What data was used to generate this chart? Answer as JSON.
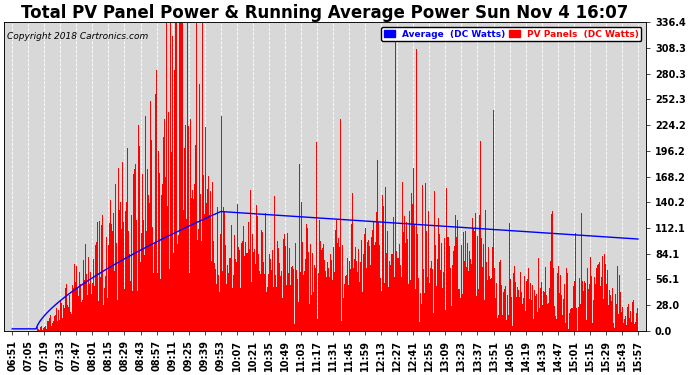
{
  "title": "Total PV Panel Power & Running Average Power Sun Nov 4 16:07",
  "copyright": "Copyright 2018 Cartronics.com",
  "ylim": [
    0,
    336.4
  ],
  "yticks": [
    0.0,
    28.0,
    56.1,
    84.1,
    112.1,
    140.2,
    168.2,
    196.2,
    224.2,
    252.3,
    280.3,
    308.3,
    336.4
  ],
  "bar_color": "#FF0000",
  "line_color": "#0000FF",
  "background_color": "#FFFFFF",
  "plot_bg_color": "#D8D8D8",
  "grid_color": "#FFFFFF",
  "legend_avg_bg": "#0000FF",
  "legend_pv_bg": "#FF0000",
  "legend_avg_text": "Average  (DC Watts)",
  "legend_pv_text": "PV Panels  (DC Watts)",
  "title_fontsize": 12,
  "tick_fontsize": 7,
  "x_tick_labels": [
    "06:51",
    "07:05",
    "07:19",
    "07:33",
    "07:47",
    "08:01",
    "08:15",
    "08:29",
    "08:43",
    "08:57",
    "09:11",
    "09:25",
    "09:39",
    "09:53",
    "10:07",
    "10:21",
    "10:35",
    "10:49",
    "11:03",
    "11:17",
    "11:31",
    "11:45",
    "11:59",
    "12:13",
    "12:27",
    "12:41",
    "12:55",
    "13:09",
    "13:23",
    "13:37",
    "13:51",
    "14:05",
    "14:19",
    "14:33",
    "14:47",
    "15:01",
    "15:15",
    "15:29",
    "15:43",
    "15:57"
  ]
}
